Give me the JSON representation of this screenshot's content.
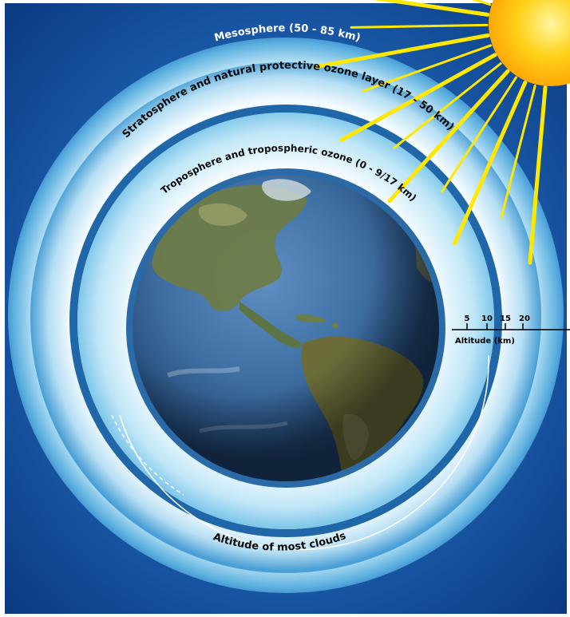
{
  "diagram": {
    "layers": {
      "mesosphere_label": "Mesosphere (50 - 85 km)",
      "stratosphere_label": "Stratosphere and natural protective ozone layer (17 - 50 km)",
      "troposphere_label": "Troposphere and tropospheric ozone  (0 - 9/17 km)",
      "clouds_label": "Altitude of most clouds"
    },
    "altitude_scale": {
      "ticks": [
        "5",
        "10",
        "15",
        "20"
      ],
      "axis_label": "Altitude (km)"
    },
    "colors": {
      "background": "#1a5aa8",
      "outer_frame": "#ffffff",
      "sun": "#ffcc00",
      "sun_rays": "#ffe800",
      "atmosphere_light": "#e8f6fc",
      "atmosphere_mid": "#7fc6e8",
      "ring_dark": "#1f67a8",
      "ocean": "#3e6fa3",
      "land": "#6d7b48"
    },
    "icons": [
      "sun-icon",
      "earth-globe-icon"
    ]
  }
}
